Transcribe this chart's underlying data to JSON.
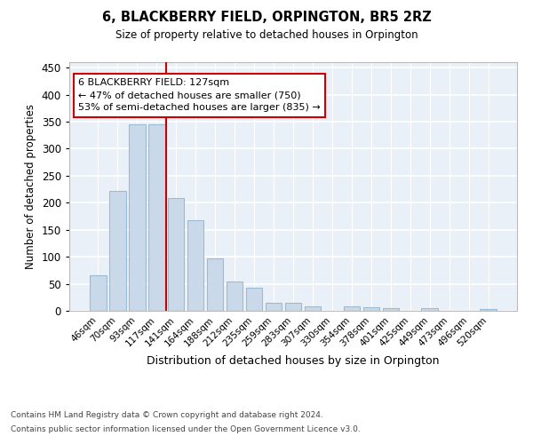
{
  "title": "6, BLACKBERRY FIELD, ORPINGTON, BR5 2RZ",
  "subtitle": "Size of property relative to detached houses in Orpington",
  "xlabel": "Distribution of detached houses by size in Orpington",
  "ylabel": "Number of detached properties",
  "categories": [
    "46sqm",
    "70sqm",
    "93sqm",
    "117sqm",
    "141sqm",
    "164sqm",
    "188sqm",
    "212sqm",
    "235sqm",
    "259sqm",
    "283sqm",
    "307sqm",
    "330sqm",
    "354sqm",
    "378sqm",
    "401sqm",
    "425sqm",
    "449sqm",
    "473sqm",
    "496sqm",
    "520sqm"
  ],
  "values": [
    65,
    222,
    345,
    345,
    208,
    167,
    97,
    55,
    42,
    15,
    15,
    8,
    0,
    8,
    7,
    5,
    0,
    5,
    0,
    0,
    3
  ],
  "bar_color": "#c9d9ea",
  "bar_edgecolor": "#9bbbd4",
  "bg_color": "#eaf0f8",
  "grid_color": "#ffffff",
  "vline_x": 3.5,
  "vline_color": "#cc0000",
  "annotation_text": "6 BLACKBERRY FIELD: 127sqm\n← 47% of detached houses are smaller (750)\n53% of semi-detached houses are larger (835) →",
  "annotation_box_facecolor": "#ffffff",
  "annotation_box_edgecolor": "#cc0000",
  "footer1": "Contains HM Land Registry data © Crown copyright and database right 2024.",
  "footer2": "Contains public sector information licensed under the Open Government Licence v3.0.",
  "ylim": [
    0,
    460
  ],
  "yticks": [
    0,
    50,
    100,
    150,
    200,
    250,
    300,
    350,
    400,
    450
  ]
}
